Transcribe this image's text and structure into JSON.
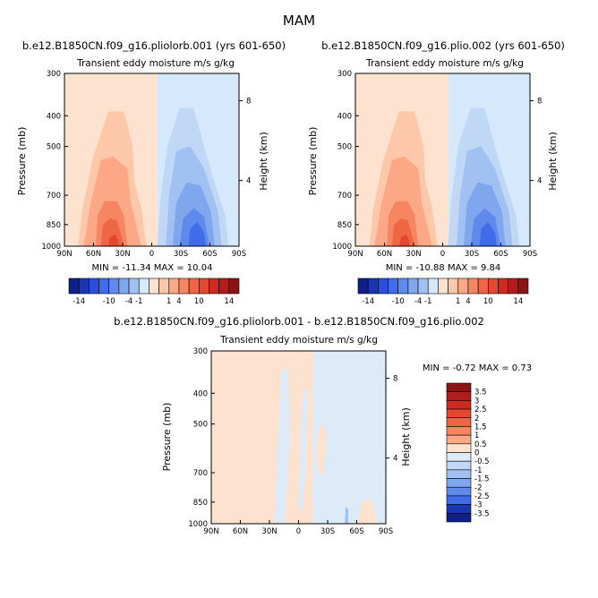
{
  "title": "MAM",
  "colors": {
    "red_scale": [
      "#fde2cf",
      "#fdc7a9",
      "#fca886",
      "#f68561",
      "#ef6645",
      "#e34831",
      "#cf2a1f",
      "#b01d1c",
      "#8b1414"
    ],
    "blue_scale": [
      "#d6e8fb",
      "#c1d7f6",
      "#a2c1f3",
      "#80a6ee",
      "#5f89ea",
      "#406cea",
      "#2a4fd9",
      "#1a36b2",
      "#0f1f86"
    ],
    "zero_light": "#ddeaf8"
  },
  "panels": [
    {
      "id": "left",
      "run_title": "b.e12.B1850CN.f09_g16.pliolorb.001 (yrs 601-650)",
      "subtitle": "Transient eddy moisture m/s g/kg",
      "ylabel": "Pressure (mb)",
      "right_label": "Height (km)",
      "minmax": "MIN = -11.34   MAX =  10.04",
      "colorbar_labels": [
        "-14",
        "-10",
        "-4",
        "-1",
        "1",
        "4",
        "10",
        "14"
      ]
    },
    {
      "id": "right",
      "run_title": "b.e12.B1850CN.f09_g16.plio.002 (yrs 601-650)",
      "subtitle": "Transient eddy moisture m/s g/kg",
      "ylabel": "Pressure (mb)",
      "right_label": "Height (km)",
      "minmax": "MIN = -10.88   MAX =   9.84",
      "colorbar_labels": [
        "-14",
        "-10",
        "-4",
        "-1",
        "1",
        "4",
        "10",
        "14"
      ]
    },
    {
      "id": "diff",
      "run_title": "b.e12.B1850CN.f09_g16.pliolorb.001 - b.e12.B1850CN.f09_g16.plio.002",
      "subtitle": "Transient eddy moisture m/s g/kg",
      "ylabel": "Pressure (mb)",
      "right_label": "Height (km)",
      "minmax": "MIN =  -0.72   MAX =   0.73",
      "colorbar_labels": [
        "3.5",
        "3",
        "2.5",
        "2",
        "1.5",
        "1",
        "0.5",
        "0",
        "-0.5",
        "-1",
        "-1.5",
        "-2",
        "-2.5",
        "-3",
        "-3.5"
      ]
    }
  ],
  "chart_data": [
    {
      "type": "heatmap",
      "title": "b.e12.B1850CN.f09_g16.pliolorb.001 (yrs 601-650)",
      "subtitle": "Transient eddy moisture m/s g/kg",
      "xlabel": "",
      "ylabel": "Pressure (mb)",
      "y2label": "Height (km)",
      "x_ticks": [
        "90N",
        "60N",
        "30N",
        "0",
        "30S",
        "60S",
        "90S"
      ],
      "y_ticks": [
        300,
        400,
        500,
        700,
        850,
        1000
      ],
      "y2_ticks": [
        4,
        8
      ],
      "ylim": [
        1000,
        300
      ],
      "min": -11.34,
      "max": 10.04,
      "levels": [
        -14,
        -10,
        -4,
        -1,
        1,
        4,
        10,
        14
      ]
    },
    {
      "type": "heatmap",
      "title": "b.e12.B1850CN.f09_g16.plio.002 (yrs 601-650)",
      "subtitle": "Transient eddy moisture m/s g/kg",
      "xlabel": "",
      "ylabel": "Pressure (mb)",
      "y2label": "Height (km)",
      "x_ticks": [
        "90N",
        "60N",
        "30N",
        "0",
        "30S",
        "60S",
        "90S"
      ],
      "y_ticks": [
        300,
        400,
        500,
        700,
        850,
        1000
      ],
      "y2_ticks": [
        4,
        8
      ],
      "ylim": [
        1000,
        300
      ],
      "min": -10.88,
      "max": 9.84,
      "levels": [
        -14,
        -10,
        -4,
        -1,
        1,
        4,
        10,
        14
      ]
    },
    {
      "type": "heatmap",
      "title": "b.e12.B1850CN.f09_g16.pliolorb.001 - b.e12.B1850CN.f09_g16.plio.002",
      "subtitle": "Transient eddy moisture m/s g/kg",
      "xlabel": "",
      "ylabel": "Pressure (mb)",
      "y2label": "Height (km)",
      "x_ticks": [
        "90N",
        "60N",
        "30N",
        "0",
        "30S",
        "60S",
        "90S"
      ],
      "y_ticks": [
        300,
        400,
        500,
        700,
        850,
        1000
      ],
      "y2_ticks": [
        4,
        8
      ],
      "ylim": [
        1000,
        300
      ],
      "min": -0.72,
      "max": 0.73,
      "levels": [
        -3.5,
        -3,
        -2.5,
        -2,
        -1.5,
        -1,
        -0.5,
        0,
        0.5,
        1,
        1.5,
        2,
        2.5,
        3,
        3.5
      ]
    }
  ]
}
